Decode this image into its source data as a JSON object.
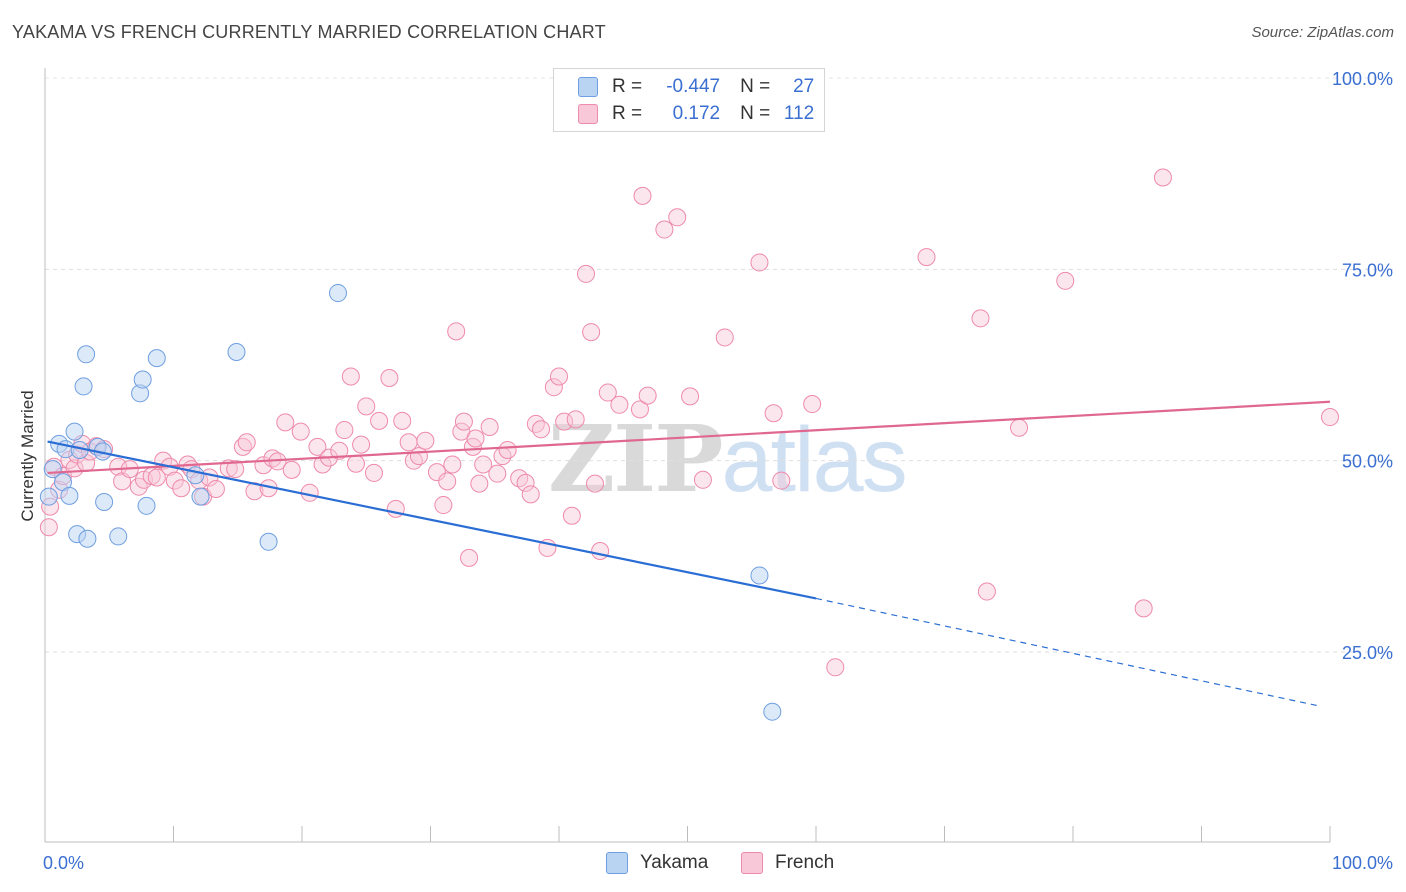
{
  "title": "YAKAMA VS FRENCH CURRENTLY MARRIED CORRELATION CHART",
  "source": "Source: ZipAtlas.com",
  "watermark": {
    "part1": "ZIP",
    "part2": "atlas"
  },
  "legend": {
    "rows": [
      {
        "r_label": "R =",
        "r_value": "-0.447",
        "n_label": "N =",
        "n_value": "27"
      },
      {
        "r_label": "R =",
        "r_value": "0.172",
        "n_label": "N =",
        "n_value": "112"
      }
    ]
  },
  "bottom_legend": {
    "yakama": "Yakama",
    "french": "French"
  },
  "chart_data": {
    "type": "scatter",
    "title": "YAKAMA VS FRENCH CURRENTLY MARRIED CORRELATION CHART",
    "xlabel": "",
    "ylabel": "Currently Married",
    "xlim": [
      0,
      100
    ],
    "ylim": [
      0,
      105
    ],
    "x_tick_labels": {
      "left": "0.0%",
      "right": "100.0%"
    },
    "y_ticks": [
      {
        "value": 25,
        "label": "25.0%"
      },
      {
        "value": 50,
        "label": "50.0%"
      },
      {
        "value": 75,
        "label": "75.0%"
      },
      {
        "value": 100,
        "label": "100.0%"
      }
    ],
    "colors": {
      "yakama": "#6f9fe0",
      "yakama_fill": "#b9d3f3",
      "yakama_line": "#2a6dd4",
      "french": "#ee8aab",
      "french_fill": "#f8c8d8",
      "french_line": "#e06890",
      "axis_label": "#3a6fd1"
    },
    "series": [
      {
        "name": "Yakama",
        "r": -0.447,
        "n": 27,
        "trend": {
          "x0": 0.2,
          "y0": 52.5,
          "x1": 60,
          "y1": 32,
          "x_dash_end": 99,
          "y_dash_end": 18
        },
        "points": [
          [
            0.3,
            45.3
          ],
          [
            0.6,
            48.9
          ],
          [
            1.1,
            52.2
          ],
          [
            1.4,
            47.2
          ],
          [
            1.6,
            51.5
          ],
          [
            1.9,
            45.4
          ],
          [
            2.3,
            53.8
          ],
          [
            2.5,
            40.4
          ],
          [
            2.7,
            51.4
          ],
          [
            3.0,
            59.7
          ],
          [
            3.2,
            63.9
          ],
          [
            3.3,
            39.8
          ],
          [
            4.1,
            51.8
          ],
          [
            4.5,
            51.2
          ],
          [
            4.6,
            44.6
          ],
          [
            5.7,
            40.1
          ],
          [
            7.4,
            58.8
          ],
          [
            7.6,
            60.6
          ],
          [
            7.9,
            44.1
          ],
          [
            8.7,
            63.4
          ],
          [
            11.7,
            48.1
          ],
          [
            12.1,
            45.3
          ],
          [
            14.9,
            64.2
          ],
          [
            17.4,
            39.4
          ],
          [
            22.8,
            71.9
          ],
          [
            55.6,
            35.0
          ],
          [
            56.6,
            17.2
          ]
        ]
      },
      {
        "name": "French",
        "r": 0.172,
        "n": 112,
        "trend": {
          "x0": 0.2,
          "y0": 48.4,
          "x1": 100,
          "y1": 57.7
        },
        "points": [
          [
            0.3,
            41.3
          ],
          [
            0.4,
            44.0
          ],
          [
            0.7,
            49.2
          ],
          [
            1.1,
            46.2
          ],
          [
            1.4,
            48.0
          ],
          [
            1.9,
            50.1
          ],
          [
            2.3,
            49.0
          ],
          [
            2.5,
            50.8
          ],
          [
            2.9,
            52.2
          ],
          [
            3.2,
            49.7
          ],
          [
            3.5,
            51.2
          ],
          [
            4.0,
            51.9
          ],
          [
            4.6,
            51.5
          ],
          [
            5.7,
            49.2
          ],
          [
            6.0,
            47.3
          ],
          [
            6.6,
            48.9
          ],
          [
            7.3,
            46.6
          ],
          [
            7.7,
            47.5
          ],
          [
            8.3,
            48.0
          ],
          [
            8.7,
            47.8
          ],
          [
            9.2,
            50.0
          ],
          [
            9.7,
            49.2
          ],
          [
            10.1,
            47.4
          ],
          [
            10.6,
            46.4
          ],
          [
            11.1,
            49.5
          ],
          [
            11.4,
            48.9
          ],
          [
            12.0,
            47.4
          ],
          [
            12.3,
            45.3
          ],
          [
            12.8,
            47.8
          ],
          [
            13.3,
            46.3
          ],
          [
            14.3,
            49.0
          ],
          [
            14.8,
            48.9
          ],
          [
            15.4,
            51.8
          ],
          [
            15.7,
            52.4
          ],
          [
            16.3,
            46.0
          ],
          [
            17.0,
            49.4
          ],
          [
            17.4,
            46.4
          ],
          [
            17.7,
            50.3
          ],
          [
            18.1,
            49.9
          ],
          [
            18.7,
            55.0
          ],
          [
            19.2,
            48.8
          ],
          [
            19.9,
            53.8
          ],
          [
            20.6,
            45.8
          ],
          [
            21.2,
            51.8
          ],
          [
            21.6,
            49.5
          ],
          [
            22.1,
            50.4
          ],
          [
            22.9,
            51.3
          ],
          [
            23.3,
            54.0
          ],
          [
            23.8,
            61.0
          ],
          [
            24.2,
            49.6
          ],
          [
            24.6,
            52.1
          ],
          [
            25.0,
            57.1
          ],
          [
            25.6,
            48.4
          ],
          [
            26.0,
            55.2
          ],
          [
            26.8,
            60.8
          ],
          [
            27.3,
            43.7
          ],
          [
            27.8,
            55.2
          ],
          [
            28.3,
            52.4
          ],
          [
            28.7,
            50.0
          ],
          [
            29.1,
            50.6
          ],
          [
            29.6,
            52.6
          ],
          [
            30.5,
            48.5
          ],
          [
            31.0,
            44.2
          ],
          [
            31.3,
            47.3
          ],
          [
            31.7,
            49.5
          ],
          [
            32.0,
            66.9
          ],
          [
            32.4,
            53.8
          ],
          [
            32.6,
            55.1
          ],
          [
            33.0,
            37.3
          ],
          [
            33.3,
            51.8
          ],
          [
            33.5,
            52.9
          ],
          [
            33.8,
            47.0
          ],
          [
            34.1,
            49.5
          ],
          [
            34.6,
            54.4
          ],
          [
            35.2,
            48.3
          ],
          [
            35.6,
            50.6
          ],
          [
            36.0,
            51.4
          ],
          [
            36.9,
            47.7
          ],
          [
            37.4,
            47.1
          ],
          [
            37.8,
            45.6
          ],
          [
            38.2,
            54.8
          ],
          [
            38.6,
            54.1
          ],
          [
            39.1,
            38.6
          ],
          [
            39.6,
            59.6
          ],
          [
            40.0,
            61.0
          ],
          [
            40.4,
            55.1
          ],
          [
            41.0,
            42.8
          ],
          [
            41.3,
            55.4
          ],
          [
            42.1,
            74.4
          ],
          [
            42.5,
            66.8
          ],
          [
            42.8,
            47.0
          ],
          [
            43.2,
            38.2
          ],
          [
            43.8,
            58.9
          ],
          [
            44.7,
            57.3
          ],
          [
            46.3,
            56.7
          ],
          [
            46.5,
            84.6
          ],
          [
            46.9,
            58.5
          ],
          [
            48.2,
            80.2
          ],
          [
            49.2,
            81.8
          ],
          [
            50.2,
            58.4
          ],
          [
            51.2,
            47.5
          ],
          [
            52.9,
            66.1
          ],
          [
            55.6,
            75.9
          ],
          [
            56.7,
            56.2
          ],
          [
            57.3,
            47.4
          ],
          [
            59.7,
            57.4
          ],
          [
            61.5,
            23.0
          ],
          [
            68.6,
            76.6
          ],
          [
            72.8,
            68.6
          ],
          [
            73.3,
            32.9
          ],
          [
            75.8,
            54.3
          ],
          [
            79.4,
            73.5
          ],
          [
            85.5,
            30.7
          ],
          [
            87.0,
            87.0
          ],
          [
            100,
            55.7
          ]
        ]
      }
    ]
  }
}
